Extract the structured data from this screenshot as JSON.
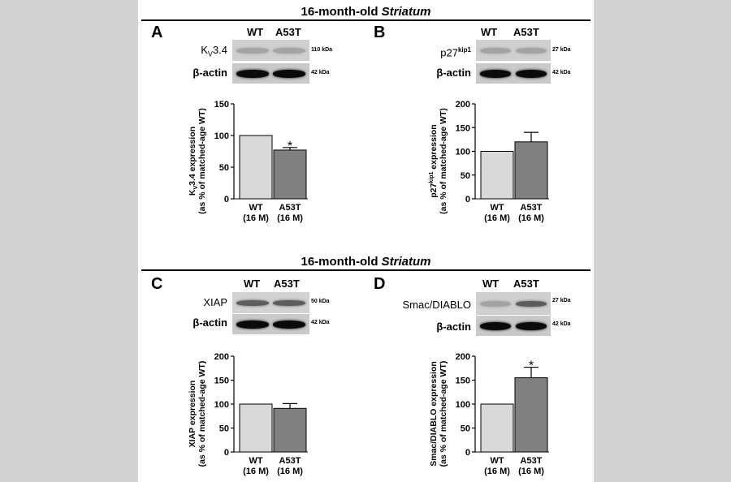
{
  "sections": [
    {
      "title_prefix": "16-month-old ",
      "title_italic": "Striatum"
    },
    {
      "title_prefix": "16-month-old ",
      "title_italic": "Striatum"
    }
  ],
  "panels": [
    {
      "label": "A",
      "lanes": [
        "WT",
        "A53T"
      ],
      "blots": [
        {
          "protein_main": "K",
          "protein_sub": "V",
          "protein_rest": "3.4",
          "kda": "110 kDa",
          "intensity": [
            "faint",
            "faint"
          ]
        },
        {
          "protein_main": "β-actin",
          "protein_sub": "",
          "protein_rest": "",
          "kda": "42 kDa",
          "intensity": [
            "strong",
            "strong"
          ]
        }
      ]
    },
    {
      "label": "B",
      "lanes": [
        "WT",
        "A53T"
      ],
      "blots": [
        {
          "protein_main": "p27",
          "protein_sup": "kip1",
          "protein_rest": "",
          "kda": "27 kDa",
          "intensity": [
            "faint",
            "faint"
          ]
        },
        {
          "protein_main": "β-actin",
          "protein_sup": "",
          "protein_rest": "",
          "kda": "42 kDa",
          "intensity": [
            "strong",
            "strong"
          ]
        }
      ]
    },
    {
      "label": "C",
      "lanes": [
        "WT",
        "A53T"
      ],
      "blots": [
        {
          "protein_main": "XIAP",
          "protein_sub": "",
          "protein_rest": "",
          "kda": "50 kDa",
          "intensity": [
            "medium",
            "medium"
          ]
        },
        {
          "protein_main": "β-actin",
          "protein_sub": "",
          "protein_rest": "",
          "kda": "42 kDa",
          "intensity": [
            "strong",
            "strong"
          ]
        }
      ]
    },
    {
      "label": "D",
      "lanes": [
        "WT",
        "A53T"
      ],
      "blots": [
        {
          "protein_main": "Smac/DIABLO",
          "protein_sub": "",
          "protein_rest": "",
          "kda": "27 kDa",
          "intensity": [
            "faint",
            "medium"
          ]
        },
        {
          "protein_main": "β-actin",
          "protein_sub": "",
          "protein_rest": "",
          "kda": "42 kDa",
          "intensity": [
            "strong",
            "strong"
          ]
        }
      ]
    }
  ],
  "chart_data": [
    {
      "type": "bar",
      "panel": "A",
      "categories": [
        [
          "WT",
          "(16 M)"
        ],
        [
          "A53T",
          "(16 M)"
        ]
      ],
      "values": [
        100,
        77
      ],
      "errors": [
        0,
        4
      ],
      "significance": [
        "",
        "*"
      ],
      "ylabel_parts": [
        "K",
        "V",
        "3.4 expression"
      ],
      "ylabel_line2": "(as % of matched-age WT)",
      "ylim": [
        0,
        150
      ],
      "yticks": [
        0,
        50,
        100,
        150
      ],
      "colors": [
        "#d9d9d9",
        "#808080"
      ]
    },
    {
      "type": "bar",
      "panel": "B",
      "categories": [
        [
          "WT",
          "(16 M)"
        ],
        [
          "A53T",
          "(16 M)"
        ]
      ],
      "values": [
        100,
        120
      ],
      "errors": [
        0,
        20
      ],
      "significance": [
        "",
        ""
      ],
      "ylabel_parts": [
        "p27",
        "kip1",
        " expression"
      ],
      "ylabel_line2": "(as % of matched-age WT)",
      "ylim": [
        0,
        200
      ],
      "yticks": [
        0,
        50,
        100,
        150,
        200
      ],
      "colors": [
        "#d9d9d9",
        "#808080"
      ]
    },
    {
      "type": "bar",
      "panel": "C",
      "categories": [
        [
          "WT",
          "(16 M)"
        ],
        [
          "A53T",
          "(16 M)"
        ]
      ],
      "values": [
        100,
        91
      ],
      "errors": [
        0,
        10
      ],
      "significance": [
        "",
        ""
      ],
      "ylabel_parts": [
        "XIAP expression",
        "",
        ""
      ],
      "ylabel_line2": "(as % of matched-age WT)",
      "ylim": [
        0,
        200
      ],
      "yticks": [
        0,
        50,
        100,
        150,
        200
      ],
      "colors": [
        "#d9d9d9",
        "#808080"
      ]
    },
    {
      "type": "bar",
      "panel": "D",
      "categories": [
        [
          "WT",
          "(16 M)"
        ],
        [
          "A53T",
          "(16 M)"
        ]
      ],
      "values": [
        100,
        155
      ],
      "errors": [
        0,
        22
      ],
      "significance": [
        "",
        "*"
      ],
      "ylabel_parts": [
        "Smac/DIABLO expression",
        "",
        ""
      ],
      "ylabel_line2": "(as % of matched-age WT)",
      "ylim": [
        0,
        200
      ],
      "yticks": [
        0,
        50,
        100,
        150,
        200
      ],
      "colors": [
        "#d9d9d9",
        "#808080"
      ]
    }
  ]
}
